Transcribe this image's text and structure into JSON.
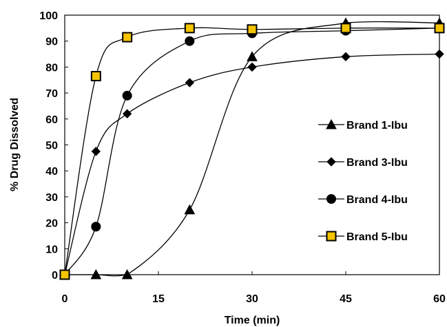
{
  "chart_data": {
    "type": "line",
    "xlabel": "Time (min)",
    "ylabel": "% Drug Dissolved",
    "xlim": [
      0,
      60
    ],
    "ylim": [
      0,
      100
    ],
    "xticks": [
      0,
      15,
      30,
      45,
      60
    ],
    "yticks": [
      0,
      10,
      20,
      30,
      40,
      50,
      60,
      70,
      80,
      90,
      100
    ],
    "grid": false,
    "legend_position": "right",
    "x": [
      0,
      5,
      10,
      20,
      30,
      45,
      60
    ],
    "series": [
      {
        "name": "Brand 1-Ibu",
        "marker": "triangle",
        "values": [
          0,
          0,
          0,
          25,
          84,
          97,
          97
        ]
      },
      {
        "name": "Brand 3-Ibu",
        "marker": "diamond",
        "values": [
          0,
          47.5,
          62,
          74,
          80,
          84,
          85
        ]
      },
      {
        "name": "Brand 4-Ibu",
        "marker": "circle",
        "values": [
          0,
          18.5,
          69,
          90,
          93,
          94,
          95
        ]
      },
      {
        "name": "Brand 5-Ibu",
        "marker": "square",
        "values": [
          0,
          76.5,
          91.5,
          95,
          94.5,
          95,
          95
        ]
      }
    ],
    "colors": {
      "line": "#000000",
      "square_fill": "#f5c400"
    }
  }
}
